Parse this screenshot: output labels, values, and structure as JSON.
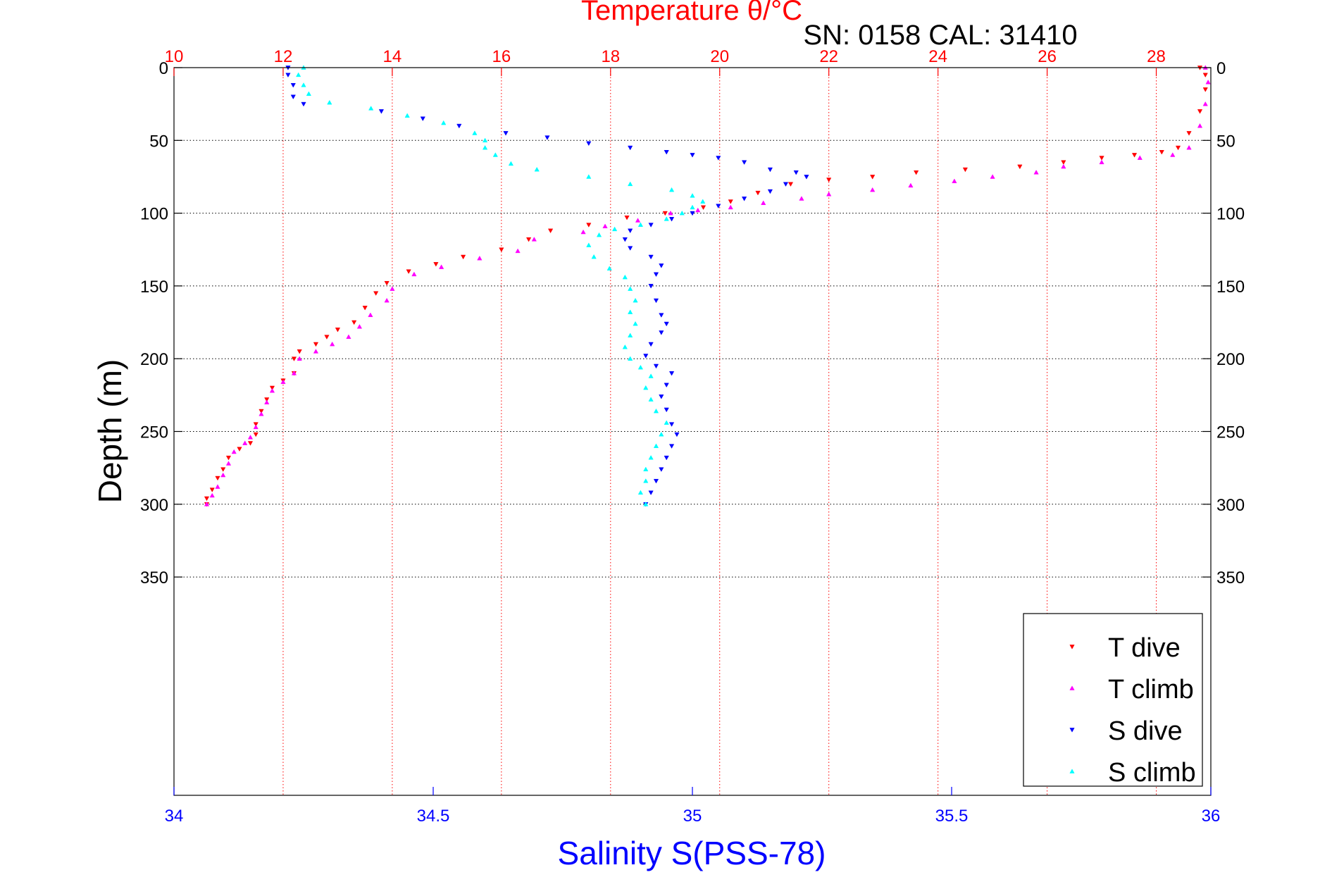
{
  "chart_data": {
    "type": "scatter",
    "title": "Temperature θ/°C",
    "subtitle": "SN: 0158  CAL: 31410",
    "xlabel_bottom": "Salinity S(PSS-78)",
    "xlabel_top": "Temperature θ/°C",
    "ylabel": "Depth (m)",
    "x_bottom": {
      "range": [
        34,
        36
      ],
      "ticks": [
        34,
        34.5,
        35,
        35.5,
        36
      ],
      "tick_labels": [
        "34",
        "34.5",
        "35",
        "35.5",
        "36"
      ],
      "color": "#0000ff"
    },
    "x_top": {
      "range": [
        10,
        29
      ],
      "ticks": [
        10,
        12,
        14,
        16,
        18,
        20,
        22,
        24,
        26,
        28
      ],
      "tick_labels": [
        "10",
        "12",
        "14",
        "16",
        "18",
        "20",
        "22",
        "24",
        "26",
        "28"
      ],
      "color": "#ff0000"
    },
    "y": {
      "range": [
        0,
        500
      ],
      "reversed": true,
      "ticks": [
        0,
        50,
        100,
        150,
        200,
        250,
        300,
        350
      ],
      "tick_labels": [
        "0",
        "50",
        "100",
        "150",
        "200",
        "250",
        "300",
        "350"
      ]
    },
    "grid": true,
    "legend_position": "bottom-right",
    "series": [
      {
        "name": "T dive",
        "axis": "top",
        "color": "#ff0000",
        "marker": "triangle-down",
        "points": [
          [
            28.8,
            0
          ],
          [
            28.9,
            5
          ],
          [
            28.9,
            15
          ],
          [
            28.8,
            30
          ],
          [
            28.6,
            45
          ],
          [
            28.4,
            55
          ],
          [
            28.1,
            58
          ],
          [
            27.6,
            60
          ],
          [
            27.0,
            62
          ],
          [
            26.3,
            65
          ],
          [
            25.5,
            68
          ],
          [
            24.5,
            70
          ],
          [
            23.6,
            72
          ],
          [
            22.8,
            75
          ],
          [
            22.0,
            77
          ],
          [
            21.3,
            80
          ],
          [
            20.7,
            86
          ],
          [
            20.2,
            92
          ],
          [
            19.7,
            96
          ],
          [
            19.0,
            100
          ],
          [
            18.3,
            103
          ],
          [
            17.6,
            108
          ],
          [
            16.9,
            112
          ],
          [
            16.5,
            118
          ],
          [
            16.0,
            125
          ],
          [
            15.3,
            130
          ],
          [
            14.8,
            135
          ],
          [
            14.3,
            140
          ],
          [
            13.9,
            148
          ],
          [
            13.7,
            155
          ],
          [
            13.5,
            165
          ],
          [
            13.3,
            175
          ],
          [
            13.0,
            180
          ],
          [
            12.8,
            185
          ],
          [
            12.6,
            190
          ],
          [
            12.3,
            195
          ],
          [
            12.2,
            200
          ],
          [
            12.2,
            210
          ],
          [
            12.0,
            215
          ],
          [
            11.8,
            220
          ],
          [
            11.7,
            228
          ],
          [
            11.6,
            236
          ],
          [
            11.5,
            245
          ],
          [
            11.5,
            252
          ],
          [
            11.4,
            258
          ],
          [
            11.2,
            262
          ],
          [
            11.0,
            268
          ],
          [
            10.9,
            276
          ],
          [
            10.8,
            282
          ],
          [
            10.7,
            290
          ],
          [
            10.6,
            296
          ],
          [
            10.6,
            300
          ]
        ]
      },
      {
        "name": "T climb",
        "axis": "top",
        "color": "#ff00ff",
        "marker": "triangle-up",
        "points": [
          [
            28.9,
            0
          ],
          [
            28.95,
            10
          ],
          [
            28.9,
            25
          ],
          [
            28.8,
            40
          ],
          [
            28.6,
            55
          ],
          [
            28.3,
            60
          ],
          [
            27.7,
            62
          ],
          [
            27.0,
            65
          ],
          [
            26.3,
            68
          ],
          [
            25.8,
            72
          ],
          [
            25.0,
            75
          ],
          [
            24.3,
            78
          ],
          [
            23.5,
            81
          ],
          [
            22.8,
            84
          ],
          [
            22.0,
            87
          ],
          [
            21.5,
            90
          ],
          [
            20.8,
            93
          ],
          [
            20.2,
            96
          ],
          [
            19.6,
            98
          ],
          [
            19.1,
            100
          ],
          [
            18.5,
            105
          ],
          [
            17.9,
            109
          ],
          [
            17.5,
            113
          ],
          [
            16.6,
            118
          ],
          [
            16.3,
            126
          ],
          [
            15.6,
            131
          ],
          [
            14.9,
            137
          ],
          [
            14.4,
            142
          ],
          [
            14.0,
            152
          ],
          [
            13.9,
            160
          ],
          [
            13.6,
            170
          ],
          [
            13.4,
            178
          ],
          [
            13.2,
            185
          ],
          [
            12.9,
            190
          ],
          [
            12.6,
            195
          ],
          [
            12.3,
            200
          ],
          [
            12.2,
            210
          ],
          [
            12.0,
            216
          ],
          [
            11.8,
            222
          ],
          [
            11.7,
            230
          ],
          [
            11.6,
            238
          ],
          [
            11.5,
            247
          ],
          [
            11.4,
            254
          ],
          [
            11.3,
            258
          ],
          [
            11.1,
            264
          ],
          [
            11.0,
            272
          ],
          [
            10.9,
            280
          ],
          [
            10.8,
            288
          ],
          [
            10.7,
            294
          ],
          [
            10.6,
            300
          ]
        ]
      },
      {
        "name": "S dive",
        "axis": "bottom",
        "color": "#0000ff",
        "marker": "triangle-down",
        "points": [
          [
            34.22,
            0
          ],
          [
            34.22,
            5
          ],
          [
            34.23,
            12
          ],
          [
            34.23,
            20
          ],
          [
            34.25,
            25
          ],
          [
            34.4,
            30
          ],
          [
            34.48,
            35
          ],
          [
            34.55,
            40
          ],
          [
            34.64,
            45
          ],
          [
            34.72,
            48
          ],
          [
            34.8,
            52
          ],
          [
            34.88,
            55
          ],
          [
            34.95,
            58
          ],
          [
            35.0,
            60
          ],
          [
            35.05,
            62
          ],
          [
            35.1,
            65
          ],
          [
            35.15,
            70
          ],
          [
            35.2,
            72
          ],
          [
            35.22,
            75
          ],
          [
            35.18,
            80
          ],
          [
            35.15,
            85
          ],
          [
            35.1,
            90
          ],
          [
            35.05,
            95
          ],
          [
            35.0,
            100
          ],
          [
            34.96,
            104
          ],
          [
            34.92,
            108
          ],
          [
            34.88,
            112
          ],
          [
            34.87,
            118
          ],
          [
            34.88,
            124
          ],
          [
            34.92,
            130
          ],
          [
            34.94,
            136
          ],
          [
            34.93,
            142
          ],
          [
            34.92,
            150
          ],
          [
            34.93,
            160
          ],
          [
            34.94,
            170
          ],
          [
            34.95,
            176
          ],
          [
            34.94,
            182
          ],
          [
            34.92,
            190
          ],
          [
            34.91,
            198
          ],
          [
            34.93,
            205
          ],
          [
            34.96,
            210
          ],
          [
            34.95,
            218
          ],
          [
            34.94,
            226
          ],
          [
            34.95,
            235
          ],
          [
            34.96,
            245
          ],
          [
            34.97,
            252
          ],
          [
            34.96,
            260
          ],
          [
            34.95,
            268
          ],
          [
            34.94,
            276
          ],
          [
            34.93,
            284
          ],
          [
            34.92,
            292
          ],
          [
            34.91,
            300
          ]
        ]
      },
      {
        "name": "S climb",
        "axis": "bottom",
        "color": "#00ffff",
        "marker": "triangle-up",
        "points": [
          [
            34.25,
            0
          ],
          [
            34.24,
            5
          ],
          [
            34.25,
            12
          ],
          [
            34.26,
            18
          ],
          [
            34.3,
            24
          ],
          [
            34.38,
            28
          ],
          [
            34.45,
            33
          ],
          [
            34.52,
            38
          ],
          [
            34.58,
            45
          ],
          [
            34.6,
            50
          ],
          [
            34.6,
            55
          ],
          [
            34.62,
            60
          ],
          [
            34.65,
            66
          ],
          [
            34.7,
            70
          ],
          [
            34.8,
            75
          ],
          [
            34.88,
            80
          ],
          [
            34.96,
            84
          ],
          [
            35.0,
            88
          ],
          [
            35.02,
            92
          ],
          [
            35.0,
            96
          ],
          [
            34.98,
            100
          ],
          [
            34.95,
            104
          ],
          [
            34.9,
            108
          ],
          [
            34.85,
            111
          ],
          [
            34.82,
            115
          ],
          [
            34.8,
            122
          ],
          [
            34.81,
            130
          ],
          [
            34.84,
            138
          ],
          [
            34.87,
            144
          ],
          [
            34.88,
            152
          ],
          [
            34.89,
            160
          ],
          [
            34.88,
            168
          ],
          [
            34.89,
            176
          ],
          [
            34.88,
            184
          ],
          [
            34.87,
            192
          ],
          [
            34.88,
            200
          ],
          [
            34.9,
            206
          ],
          [
            34.92,
            212
          ],
          [
            34.91,
            220
          ],
          [
            34.92,
            228
          ],
          [
            34.93,
            236
          ],
          [
            34.95,
            244
          ],
          [
            34.94,
            252
          ],
          [
            34.93,
            260
          ],
          [
            34.92,
            268
          ],
          [
            34.91,
            276
          ],
          [
            34.91,
            284
          ],
          [
            34.9,
            292
          ],
          [
            34.91,
            300
          ]
        ]
      }
    ]
  }
}
